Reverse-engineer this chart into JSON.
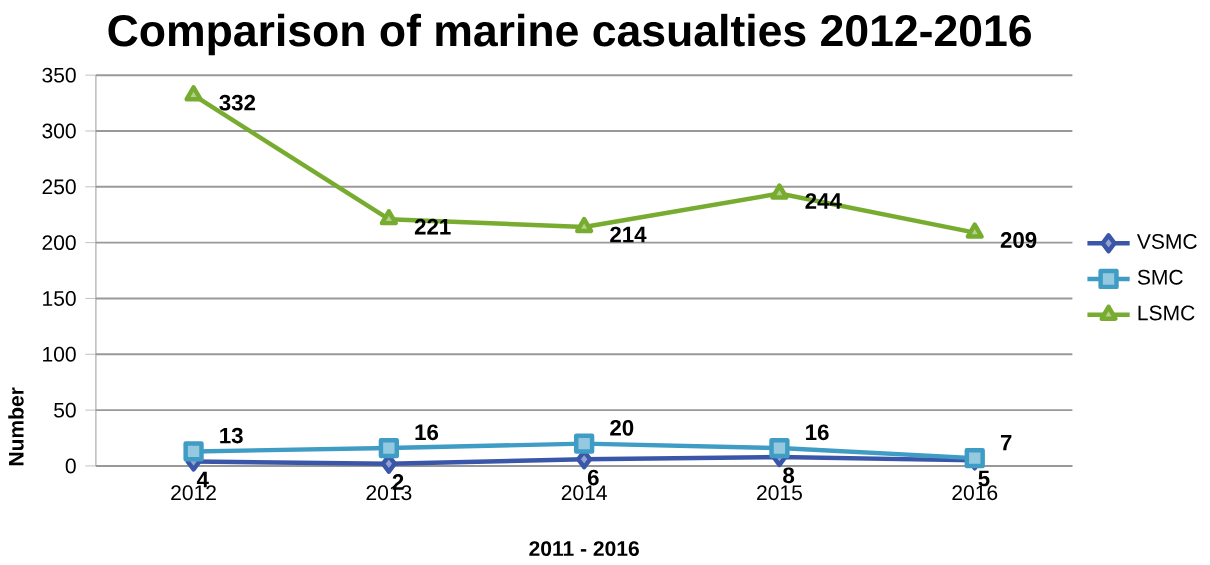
{
  "chart_data": {
    "type": "line",
    "title": "Comparison of marine casualties 2012-2016",
    "xlabel": "2011 - 2016",
    "ylabel": "Number",
    "categories": [
      "2012",
      "2013",
      "2014",
      "2015",
      "2016"
    ],
    "series": [
      {
        "name": "VSMC",
        "color": "#3a56a8",
        "marker": "diamond",
        "values": [
          4,
          2,
          6,
          8,
          5
        ]
      },
      {
        "name": "SMC",
        "color": "#3f9cc4",
        "marker": "square",
        "values": [
          13,
          16,
          20,
          16,
          7
        ]
      },
      {
        "name": "LSMC",
        "color": "#78ac30",
        "marker": "triangle",
        "values": [
          332,
          221,
          214,
          244,
          209
        ]
      }
    ],
    "ylim": [
      0,
      350
    ],
    "yticks": [
      0,
      50,
      100,
      150,
      200,
      250,
      300,
      350
    ],
    "grid": "y",
    "legend": "right",
    "data_labels": true,
    "line_style": "solid"
  }
}
